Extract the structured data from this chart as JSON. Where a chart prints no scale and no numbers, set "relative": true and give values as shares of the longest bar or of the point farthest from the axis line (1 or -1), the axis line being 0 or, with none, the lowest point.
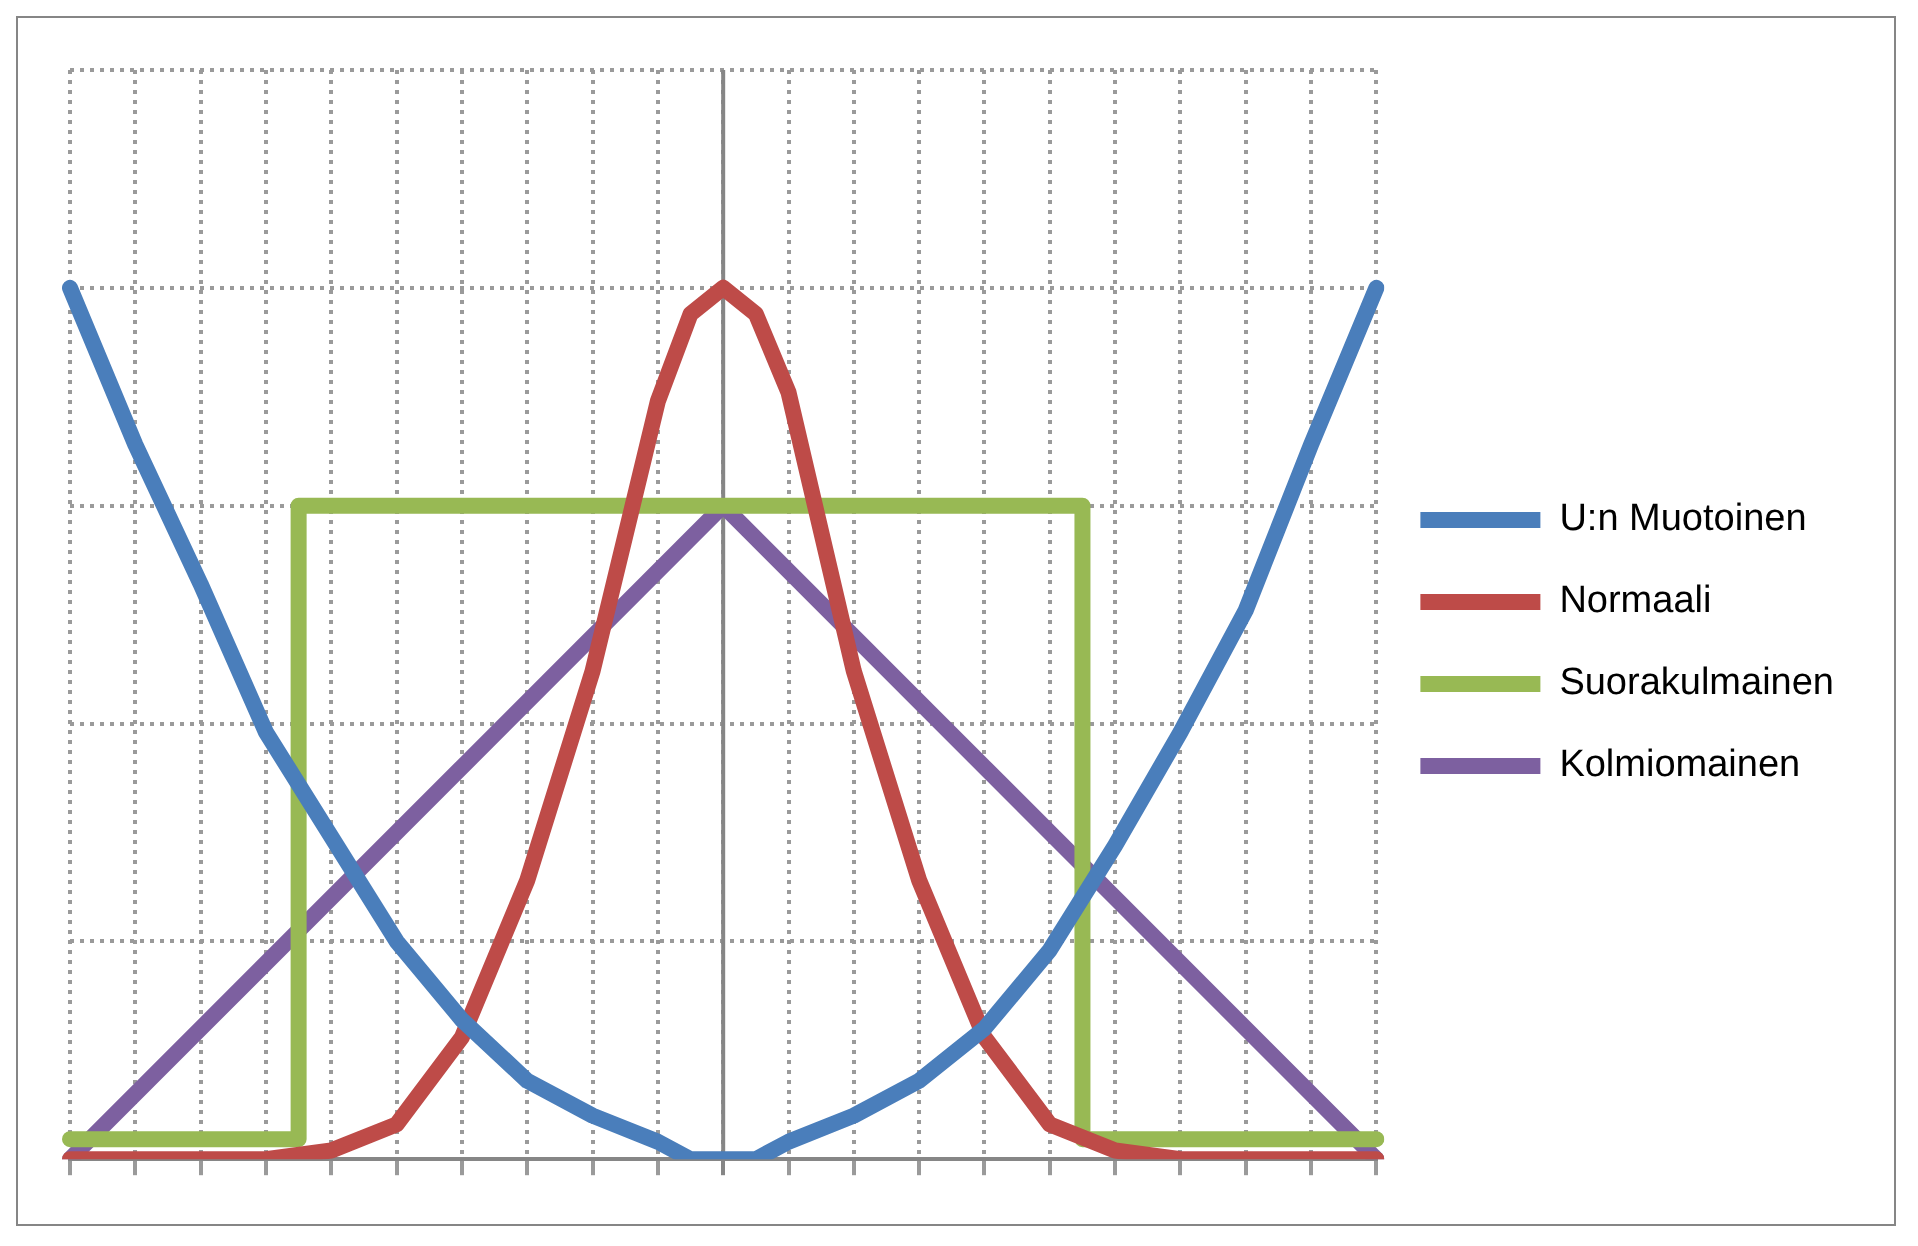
{
  "chart_data": {
    "type": "line",
    "relative": true,
    "categories": [
      null,
      null,
      null,
      null,
      null,
      null,
      null,
      null,
      null,
      null,
      null,
      null,
      null,
      null,
      null,
      null,
      null,
      null,
      null,
      null,
      null,
      null,
      null,
      null,
      null,
      null,
      null,
      null,
      null,
      null,
      null,
      null,
      null,
      null,
      null,
      null,
      null,
      null,
      null,
      null,
      null
    ],
    "series": [
      {
        "name": "U:n Muotoinen",
        "color": "#4a7ebb",
        "values": [
          1,
          null,
          0.82,
          null,
          0.66,
          null,
          0.49,
          null,
          0.37,
          null,
          0.25,
          null,
          0.16,
          null,
          0.09,
          null,
          0.05,
          null,
          0.02,
          0,
          0,
          0,
          0.02,
          null,
          0.05,
          null,
          0.09,
          null,
          0.15,
          null,
          0.24,
          null,
          0.36,
          null,
          0.49,
          null,
          0.63,
          null,
          0.82,
          null,
          1
        ]
      },
      {
        "name": "Normaali",
        "color": "#be4b48",
        "values": [
          0,
          null,
          0,
          null,
          0,
          null,
          0,
          null,
          0.01,
          null,
          0.04,
          null,
          0.14,
          null,
          0.32,
          null,
          0.56,
          null,
          0.87,
          0.97,
          1,
          0.97,
          0.88,
          null,
          0.56,
          null,
          0.32,
          null,
          0.14,
          null,
          0.04,
          null,
          0.01,
          null,
          0,
          null,
          0,
          null,
          0,
          null,
          0
        ]
      },
      {
        "name": "Suorakulmainen",
        "color": "#98b954",
        "type": "step",
        "values": [
          0.023,
          0.023,
          0.023,
          0.023,
          0.023,
          0.023,
          0.023,
          0.023,
          0.75,
          0.75,
          0.75,
          0.75,
          0.75,
          0.75,
          0.75,
          0.75,
          0.75,
          0.75,
          0.75,
          0.75,
          0.75,
          0.75,
          0.75,
          0.75,
          0.75,
          0.75,
          0.75,
          0.75,
          0.75,
          0.75,
          0.75,
          0.75,
          0.023,
          0.023,
          0.023,
          0.023,
          0.023,
          0.023,
          0.023,
          0.023,
          0.023
        ]
      },
      {
        "name": "Kolmiomainen",
        "color": "#7d60a0",
        "values": [
          0,
          null,
          null,
          null,
          null,
          null,
          null,
          null,
          null,
          null,
          null,
          null,
          0.45,
          null,
          null,
          null,
          null,
          null,
          null,
          null,
          0.75,
          null,
          null,
          null,
          null,
          null,
          null,
          null,
          0.45,
          null,
          null,
          null,
          null,
          null,
          null,
          null,
          null,
          null,
          null,
          null,
          0
        ]
      }
    ],
    "grid": true,
    "legend": "right",
    "marker": "none",
    "line_style": "solid"
  }
}
